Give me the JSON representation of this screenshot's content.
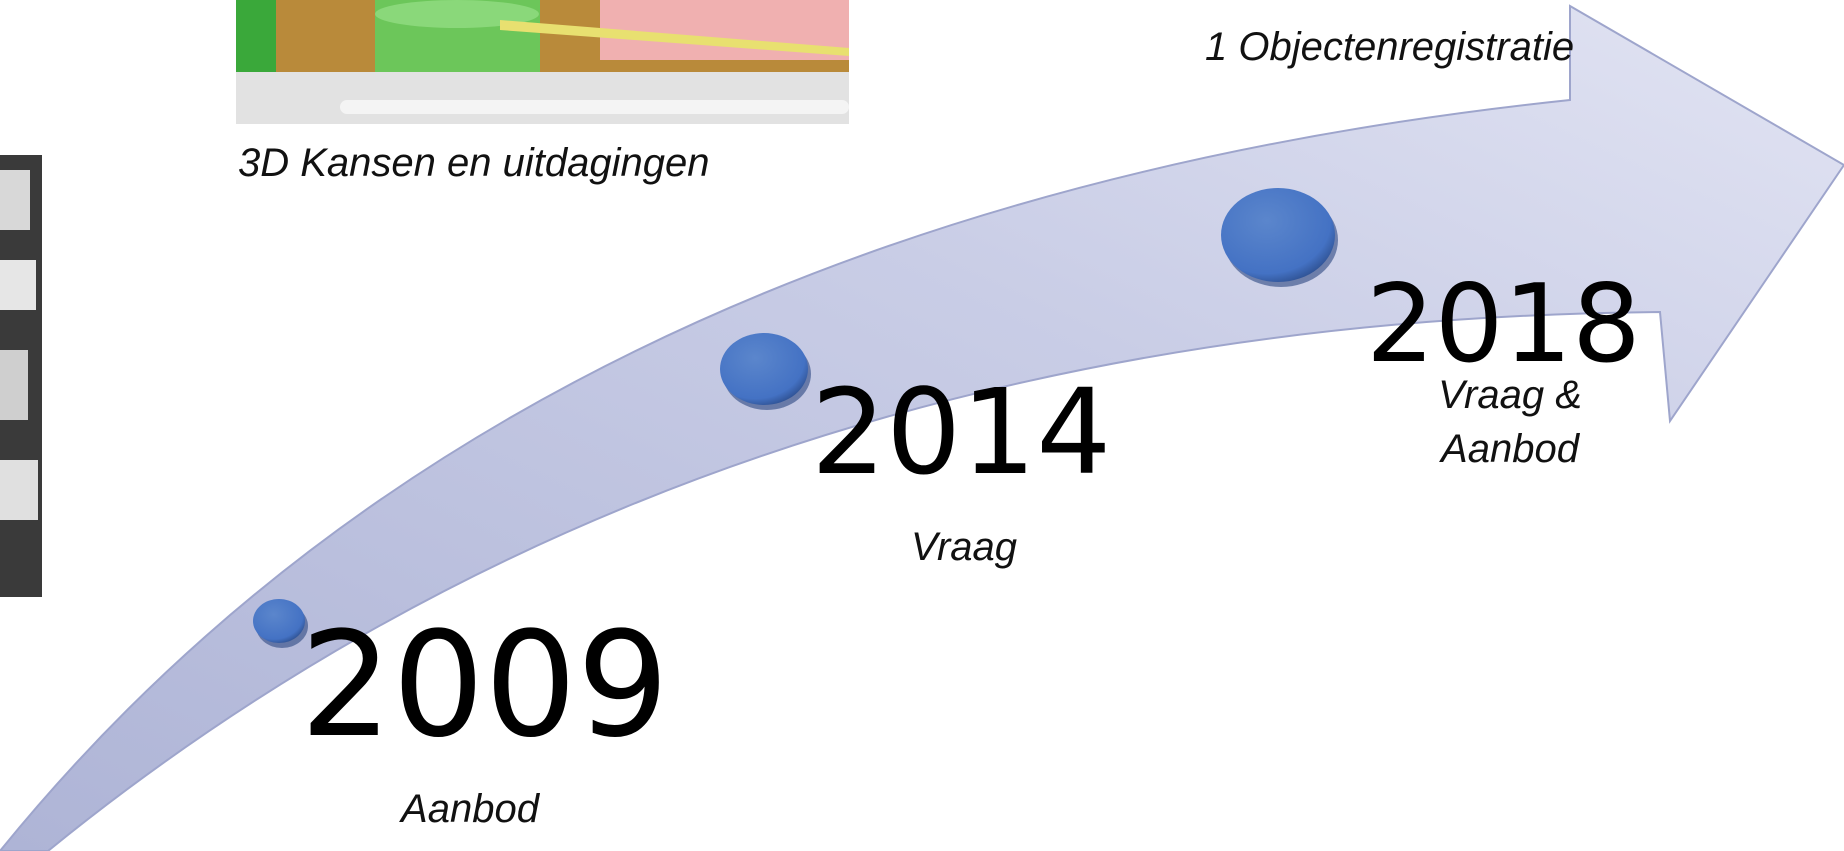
{
  "captions": {
    "top_right": "1 Objectenregistratie",
    "top_image": "3D Kansen en uitdagingen"
  },
  "milestones": [
    {
      "year": "2009",
      "label": [
        "Aanbod"
      ]
    },
    {
      "year": "2014",
      "label": [
        "Vraag"
      ]
    },
    {
      "year": "2018",
      "label": [
        "Vraag &",
        "Aanbod"
      ]
    }
  ]
}
